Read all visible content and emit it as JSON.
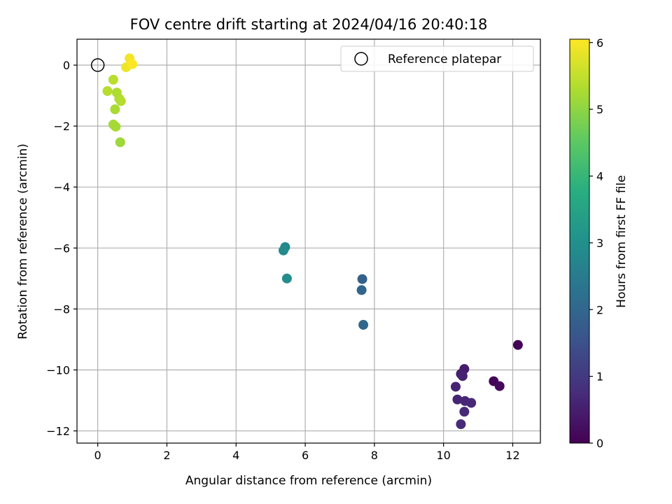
{
  "chart_data": {
    "type": "scatter",
    "title": "FOV centre drift starting at 2024/04/16 20:40:18",
    "xlabel": "Angular distance from reference (arcmin)",
    "ylabel": "Rotation from reference (arcmin)",
    "xlim": [
      -0.6,
      12.8
    ],
    "ylim": [
      -12.4,
      0.85
    ],
    "xticks": [
      0,
      2,
      4,
      6,
      8,
      10,
      12
    ],
    "yticks": [
      0,
      -2,
      -4,
      -6,
      -8,
      -10,
      -12
    ],
    "grid": true,
    "legend": {
      "placement": "top-right",
      "entries": [
        "Reference platepar"
      ]
    },
    "reference_point": {
      "x": 0,
      "y": 0
    },
    "colorbar": {
      "label": "Hours from first FF file",
      "min": 0,
      "max": 6.05,
      "ticks": [
        0,
        1,
        2,
        3,
        4,
        5,
        6
      ],
      "colormap": "viridis"
    },
    "points": [
      {
        "x": 12.15,
        "y": -9.18,
        "c": 0.02
      },
      {
        "x": 11.45,
        "y": -10.37,
        "c": 0.08
      },
      {
        "x": 11.62,
        "y": -10.53,
        "c": 0.15
      },
      {
        "x": 10.6,
        "y": -9.97,
        "c": 0.45
      },
      {
        "x": 10.5,
        "y": -10.13,
        "c": 0.5
      },
      {
        "x": 10.55,
        "y": -10.2,
        "c": 0.55
      },
      {
        "x": 10.35,
        "y": -10.55,
        "c": 0.6
      },
      {
        "x": 10.4,
        "y": -10.97,
        "c": 0.62
      },
      {
        "x": 10.62,
        "y": -11.02,
        "c": 0.65
      },
      {
        "x": 10.8,
        "y": -11.08,
        "c": 0.68
      },
      {
        "x": 10.6,
        "y": -11.37,
        "c": 0.7
      },
      {
        "x": 10.5,
        "y": -11.78,
        "c": 0.72
      },
      {
        "x": 7.65,
        "y": -7.02,
        "c": 1.85
      },
      {
        "x": 7.63,
        "y": -7.38,
        "c": 1.95
      },
      {
        "x": 7.68,
        "y": -8.52,
        "c": 2.0
      },
      {
        "x": 5.42,
        "y": -5.97,
        "c": 2.8
      },
      {
        "x": 5.37,
        "y": -6.08,
        "c": 2.85
      },
      {
        "x": 5.47,
        "y": -7.0,
        "c": 2.9
      },
      {
        "x": 0.65,
        "y": -2.53,
        "c": 5.15
      },
      {
        "x": 0.45,
        "y": -1.95,
        "c": 5.2
      },
      {
        "x": 0.52,
        "y": -2.02,
        "c": 5.22
      },
      {
        "x": 0.5,
        "y": -1.45,
        "c": 5.25
      },
      {
        "x": 0.55,
        "y": -0.9,
        "c": 5.3
      },
      {
        "x": 0.62,
        "y": -1.1,
        "c": 5.32
      },
      {
        "x": 0.67,
        "y": -1.18,
        "c": 5.35
      },
      {
        "x": 0.28,
        "y": -0.85,
        "c": 5.38
      },
      {
        "x": 0.45,
        "y": -0.48,
        "c": 5.4
      },
      {
        "x": 0.82,
        "y": -0.07,
        "c": 5.9
      },
      {
        "x": 0.92,
        "y": 0.22,
        "c": 5.95
      },
      {
        "x": 1.0,
        "y": 0.03,
        "c": 6.05
      }
    ]
  }
}
